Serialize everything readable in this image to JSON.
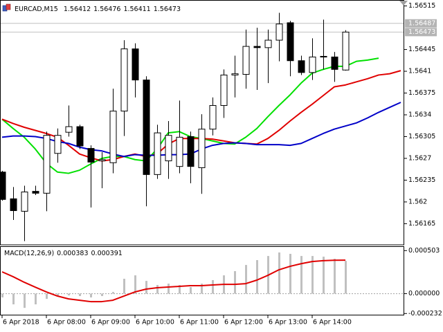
{
  "chart_data": [
    {
      "type": "candlestick",
      "title": "EURCAD,M15",
      "categories": [
        "6 Apr 2018",
        null,
        null,
        null,
        "6 Apr 08:00",
        null,
        null,
        null,
        "6 Apr 09:00",
        null,
        null,
        null,
        "6 Apr 10:00",
        null,
        null,
        null,
        "6 Apr 11:00",
        null,
        null,
        null,
        "6 Apr 12:00",
        null,
        null,
        null,
        "6 Apr 13:00",
        null,
        null,
        null,
        "6 Apr 14:00",
        null,
        null,
        null,
        null,
        null,
        null,
        null,
        null
      ],
      "open": [
        1.56248,
        1.56205,
        1.56185,
        1.56217,
        1.56214,
        1.56278,
        1.56312,
        1.56321,
        1.56286,
        1.56266,
        1.56263,
        1.56346,
        1.56446,
        1.56396,
        1.56244,
        1.56266,
        1.56257,
        1.56305,
        1.56255,
        1.56317,
        1.56355,
        1.56404,
        1.56405,
        1.5645,
        1.56448,
        1.5646,
        1.56488,
        1.56427,
        1.56408,
        1.56433,
        1.56433,
        1.56412,
        null,
        null,
        null,
        null,
        null
      ],
      "high": [
        1.5625,
        1.56224,
        1.56226,
        1.56226,
        1.56313,
        1.56318,
        1.56355,
        1.56324,
        1.56291,
        1.5628,
        1.56382,
        1.5646,
        1.56455,
        1.56402,
        1.56324,
        1.5633,
        1.56363,
        1.56313,
        1.56341,
        1.56368,
        1.56413,
        1.56435,
        1.56477,
        1.5648,
        1.56477,
        1.56504,
        1.56491,
        1.56435,
        1.56463,
        1.56493,
        1.56441,
        1.56476,
        null,
        null,
        null,
        null,
        null
      ],
      "low": [
        1.56202,
        1.56171,
        1.56137,
        1.56211,
        1.56185,
        1.56263,
        1.56305,
        1.56285,
        1.56191,
        1.56222,
        1.56246,
        1.56306,
        1.56368,
        1.56193,
        1.56237,
        1.56237,
        1.56246,
        1.5623,
        1.56213,
        1.56307,
        1.56335,
        1.56368,
        1.56382,
        1.5638,
        1.56391,
        1.56426,
        1.56402,
        1.56404,
        1.56396,
        1.56413,
        1.56393,
        1.56411,
        null,
        null,
        null,
        null,
        null
      ],
      "close": [
        1.56204,
        1.56186,
        1.56216,
        1.56214,
        1.56307,
        1.56307,
        1.56321,
        1.5629,
        1.56264,
        1.56268,
        1.56346,
        1.56446,
        1.56396,
        1.56244,
        1.56311,
        1.56307,
        1.56304,
        1.56257,
        1.56317,
        1.56355,
        1.56404,
        1.56406,
        1.5645,
        1.56448,
        1.5646,
        1.56486,
        1.56427,
        1.56408,
        1.56433,
        1.56434,
        1.56413,
        1.56473,
        null,
        null,
        null,
        null,
        null
      ],
      "bull_color": "#ffffff",
      "bear_color": "#000000",
      "wick_color": "#000000",
      "series": [
        {
          "color": "#00e000",
          "values": [
            1.56333,
            1.56318,
            1.56304,
            1.56285,
            1.56262,
            1.56248,
            1.56246,
            1.56251,
            1.56261,
            1.5627,
            1.56273,
            1.56273,
            1.56268,
            1.56266,
            1.56285,
            1.56311,
            1.56313,
            1.56305,
            1.56302,
            1.56298,
            1.56294,
            1.56293,
            1.56304,
            1.56318,
            1.56337,
            1.56355,
            1.56372,
            1.56391,
            1.56407,
            1.56413,
            1.56418,
            1.56418,
            1.56426,
            1.56428,
            1.56431,
            null,
            null
          ]
        },
        {
          "color": "#e00000",
          "values": [
            1.56333,
            1.56326,
            1.5632,
            1.56315,
            1.5631,
            1.56304,
            1.56291,
            1.56277,
            1.56271,
            1.56266,
            1.56268,
            1.56273,
            1.56277,
            1.56273,
            1.56277,
            1.56293,
            1.56302,
            1.56302,
            1.56302,
            1.56301,
            1.56298,
            1.56295,
            1.56294,
            1.56293,
            1.56302,
            1.56315,
            1.5633,
            1.56344,
            1.56357,
            1.56371,
            1.56385,
            1.56388,
            1.56393,
            1.56398,
            1.56404,
            1.56406,
            1.56411
          ]
        },
        {
          "color": "#0000c8",
          "values": [
            1.56304,
            1.56306,
            1.56306,
            1.56305,
            1.56302,
            1.56297,
            1.56294,
            1.56288,
            1.56284,
            1.56282,
            1.56277,
            1.56273,
            1.56276,
            1.56275,
            1.56275,
            1.56276,
            1.56276,
            1.56277,
            1.56285,
            1.56291,
            1.56294,
            1.56295,
            1.56294,
            1.56292,
            1.56292,
            1.56292,
            1.56291,
            1.56294,
            1.56302,
            1.5631,
            1.56317,
            1.56322,
            1.56327,
            1.56335,
            1.56344,
            1.56352,
            1.5636
          ]
        }
      ],
      "ask": 1.56487,
      "ylim": [
        1.56131,
        1.56524
      ],
      "yticks": [
        1.56515,
        1.56445,
        1.5641,
        1.56375,
        1.5634,
        1.56305,
        1.5627,
        1.56235,
        1.562,
        1.56165
      ]
    },
    {
      "type": "macd",
      "title": "MACD(12,26,9)",
      "series": [
        {
          "type": "bar",
          "color": "#c0c0c0",
          "values": [
            -4.4e-05,
            -0.000125,
            -0.000166,
            -0.000125,
            -6.1e-05,
            -2.8e-05,
            -2e-05,
            -2.8e-05,
            -4.4e-05,
            -2.8e-05,
            2e-05,
            0.000174,
            0.000214,
            0.000149,
            0.000101,
            0.000117,
            0.000101,
            7.7e-05,
            0.000117,
            0.000158,
            0.000214,
            0.000263,
            0.000335,
            0.000392,
            0.00044,
            0.000481,
            0.000465,
            0.00044,
            0.00044,
            0.000432,
            0.000408,
            0.000383,
            null,
            null,
            null,
            null,
            null
          ]
        },
        {
          "type": "line",
          "color": "#e00000",
          "values": [
            0.000255,
            0.000198,
            0.000133,
            7.6e-05,
            2e-05,
            -2.8e-05,
            -6.1e-05,
            -7.7e-05,
            -9.3e-05,
            -9.3e-05,
            -7.7e-05,
            -2.8e-05,
            2e-05,
            5.3e-05,
            6.9e-05,
            7.7e-05,
            8.5e-05,
            9.3e-05,
            9.3e-05,
            0.000101,
            0.000109,
            0.000109,
            0.000117,
            0.000158,
            0.000214,
            0.000279,
            0.000319,
            0.00035,
            0.000375,
            0.000385,
            0.00039,
            0.000391,
            null,
            null,
            null,
            null,
            null
          ]
        }
      ],
      "zero_line": true,
      "ylim": [
        -0.00025,
        0.00055
      ],
      "yticks": [
        0.000503,
        {
          "value": 0,
          "label": "0.000000"
        },
        -0.000232
      ]
    }
  ]
}
